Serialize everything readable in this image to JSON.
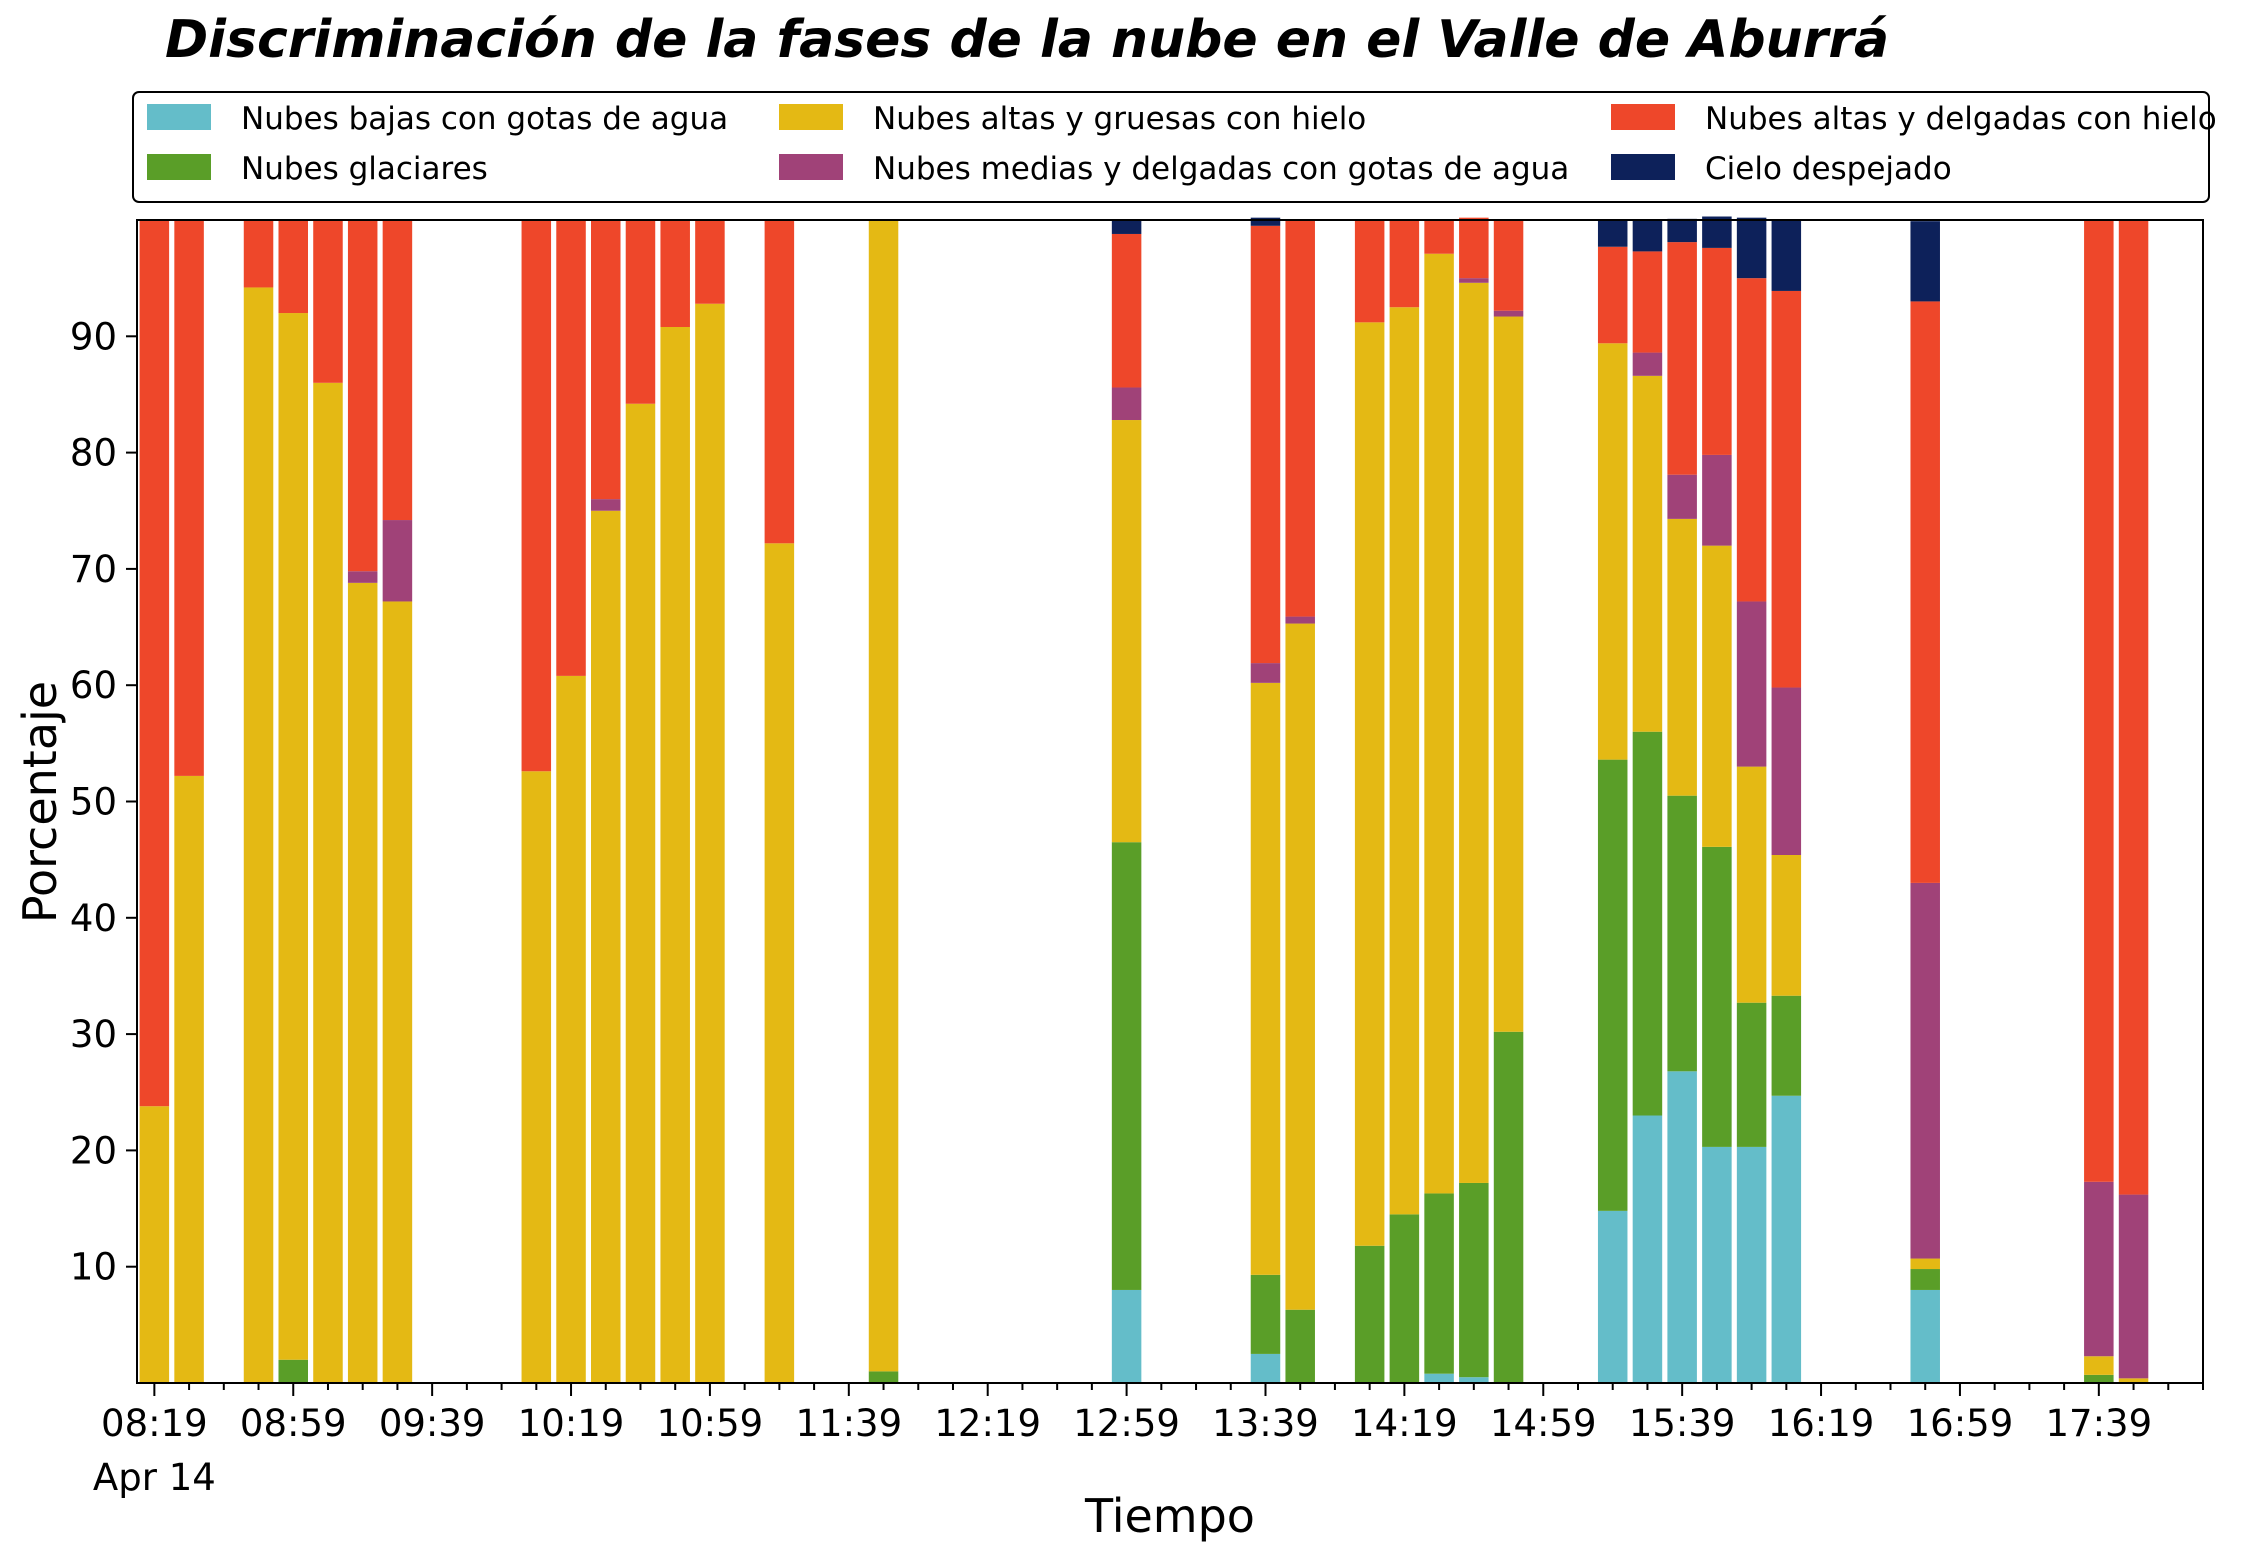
{
  "title": "Discriminación de la fases de la nube en el Valle de Aburrá",
  "chart_data": {
    "type": "bar",
    "stacked": true,
    "title": "Discriminación de la fases de la nube en el Valle de Aburrá",
    "xlabel": "Tiempo",
    "ylabel": "Porcentaje",
    "ylim": [
      0,
      100
    ],
    "yticks": [
      10,
      20,
      30,
      40,
      50,
      60,
      70,
      80,
      90
    ],
    "xlim": [
      "08:14",
      "18:09"
    ],
    "xtick_labels": [
      "08:19",
      "08:59",
      "09:39",
      "10:19",
      "10:59",
      "11:39",
      "12:19",
      "12:59",
      "13:39",
      "14:19",
      "14:59",
      "15:39",
      "16:19",
      "16:59",
      "17:39"
    ],
    "x_date_label": "Apr 14",
    "bar_width_minutes": 8.5,
    "grid": false,
    "legend_position": "top",
    "legend": [
      {
        "name": "Nubes bajas con gotas de agua",
        "color": "#64bdc9"
      },
      {
        "name": "Nubes glaciares",
        "color": "#5a9e28"
      },
      {
        "name": "Nubes altas y gruesas con hielo",
        "color": "#e4b914"
      },
      {
        "name": "Nubes medias y delgadas con gotas de agua",
        "color": "#a04278"
      },
      {
        "name": "Nubes altas y delgadas con hielo",
        "color": "#ee472a"
      },
      {
        "name": "Cielo despejado",
        "color": "#0d215a"
      }
    ],
    "series": [
      {
        "name": "Nubes bajas con gotas de agua",
        "color": "#64bdc9",
        "values": [
          0,
          0,
          0,
          0,
          0,
          0,
          0,
          0,
          0,
          0,
          0,
          0,
          0,
          0,
          0,
          0,
          8,
          2.5,
          0,
          0,
          0,
          0.8,
          0.5,
          0,
          14.8,
          23,
          26.8,
          20.3,
          20.3,
          24.7,
          8,
          0,
          0
        ]
      },
      {
        "name": "Nubes glaciares",
        "color": "#5a9e28",
        "values": [
          0,
          0,
          0,
          2,
          0,
          0,
          0,
          0,
          0,
          0,
          0,
          0,
          0,
          0,
          1,
          0,
          38.5,
          6.8,
          6.3,
          11.8,
          14.5,
          15.5,
          16.7,
          30.2,
          38.8,
          33,
          23.7,
          25.8,
          12.4,
          8.6,
          1.8,
          0.7,
          0
        ]
      },
      {
        "name": "Nubes altas y gruesas con hielo",
        "color": "#e4b914",
        "values": [
          23.8,
          52.2,
          94.2,
          90,
          86,
          68.8,
          67.2,
          52.6,
          60.8,
          75,
          84.2,
          90.8,
          92.8,
          72.2,
          99,
          0,
          36.3,
          50.9,
          59,
          79.4,
          78,
          80.8,
          77.4,
          61.5,
          35.8,
          30.6,
          23.8,
          25.9,
          20.3,
          12.1,
          0.9,
          1.6,
          0.4
        ]
      },
      {
        "name": "Nubes medias y delgadas con gotas de agua",
        "color": "#a04278",
        "values": [
          0,
          0,
          0,
          0,
          0,
          1,
          7,
          0,
          0,
          1,
          0,
          0,
          0,
          0,
          0,
          0,
          2.8,
          1.7,
          0.6,
          0,
          0,
          0,
          0.4,
          0.5,
          0,
          2,
          3.8,
          7.8,
          14.2,
          14.4,
          32.3,
          15,
          15.8
        ]
      },
      {
        "name": "Nubes altas y delgadas con hielo",
        "color": "#ee472a",
        "values": [
          76.2,
          47.8,
          5.8,
          8,
          14,
          30.2,
          25.8,
          47.4,
          39.2,
          24,
          15.8,
          9.2,
          7.2,
          27.8,
          0,
          0,
          13.2,
          37.6,
          34.1,
          8.8,
          7.5,
          2.9,
          5.2,
          7.8,
          8.3,
          8.7,
          20,
          17.8,
          27.8,
          34.1,
          50,
          82.7,
          83.8
        ]
      },
      {
        "name": "Cielo despejado",
        "color": "#0d215a",
        "values": [
          0,
          0,
          0,
          0,
          0,
          0,
          0,
          0,
          0,
          0,
          0,
          0,
          0,
          0,
          0,
          0,
          1.2,
          0.7,
          0,
          0,
          0,
          0,
          0,
          0,
          2.3,
          2.7,
          2,
          2.7,
          5.2,
          6.1,
          6.9,
          0,
          0
        ]
      }
    ],
    "x": [
      "08:19",
      "08:29",
      "08:49",
      "08:59",
      "09:09",
      "09:19",
      "09:29",
      "10:09",
      "10:19",
      "10:29",
      "10:39",
      "10:49",
      "10:59",
      "11:19",
      "11:49",
      "12:39",
      "12:59",
      "13:39",
      "13:49",
      "14:09",
      "14:19",
      "14:29",
      "14:39",
      "14:49",
      "15:19",
      "15:29",
      "15:39",
      "15:49",
      "15:59",
      "16:09",
      "16:49",
      "17:39",
      "17:49"
    ]
  }
}
